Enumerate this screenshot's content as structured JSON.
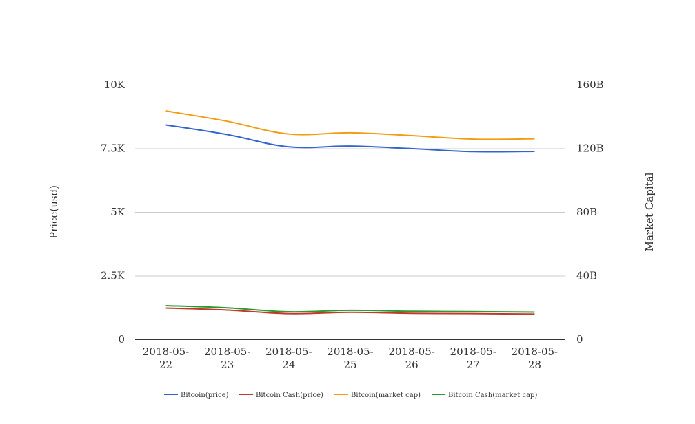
{
  "chart_data": {
    "type": "line",
    "categories": [
      "2018-05-22",
      "2018-05-23",
      "2018-05-24",
      "2018-05-25",
      "2018-05-26",
      "2018-05-27",
      "2018-05-28"
    ],
    "category_label_lines": [
      [
        "2018-05-",
        "22"
      ],
      [
        "2018-05-",
        "23"
      ],
      [
        "2018-05-",
        "24"
      ],
      [
        "2018-05-",
        "25"
      ],
      [
        "2018-05-",
        "26"
      ],
      [
        "2018-05-",
        "27"
      ],
      [
        "2018-05-",
        "28"
      ]
    ],
    "y_left": {
      "label": "Price(usd)",
      "range": [
        0,
        10000
      ],
      "ticks": [
        0,
        2500,
        5000,
        7500,
        10000
      ],
      "tick_labels": [
        "0",
        "2.5K",
        "5K",
        "7.5K",
        "10K"
      ]
    },
    "y_right": {
      "label": "Market Capital",
      "range": [
        0,
        160000000000
      ],
      "ticks": [
        0,
        40000000000,
        80000000000,
        120000000000,
        160000000000
      ],
      "tick_labels": [
        "0",
        "40B",
        "80B",
        "120B",
        "160B"
      ]
    },
    "grid": true,
    "legend_position": "bottom",
    "series": [
      {
        "name": "Bitcoin(price)",
        "axis": "left",
        "color": "#3366cc",
        "values": [
          8420,
          8040,
          7560,
          7590,
          7490,
          7370,
          7380
        ]
      },
      {
        "name": "Bitcoin Cash(price)",
        "axis": "left",
        "color": "#c0392b",
        "values": [
          1230,
          1150,
          1010,
          1060,
          1020,
          1010,
          990
        ]
      },
      {
        "name": "Bitcoin(market cap)",
        "axis": "right",
        "color": "#f39c12",
        "values": [
          143500000000,
          137000000000,
          129000000000,
          129800000000,
          128000000000,
          125800000000,
          126000000000
        ]
      },
      {
        "name": "Bitcoin Cash(market cap)",
        "axis": "right",
        "color": "#2e9a2e",
        "values": [
          21200000000,
          19800000000,
          17300000000,
          18200000000,
          17600000000,
          17400000000,
          17100000000
        ]
      }
    ]
  }
}
